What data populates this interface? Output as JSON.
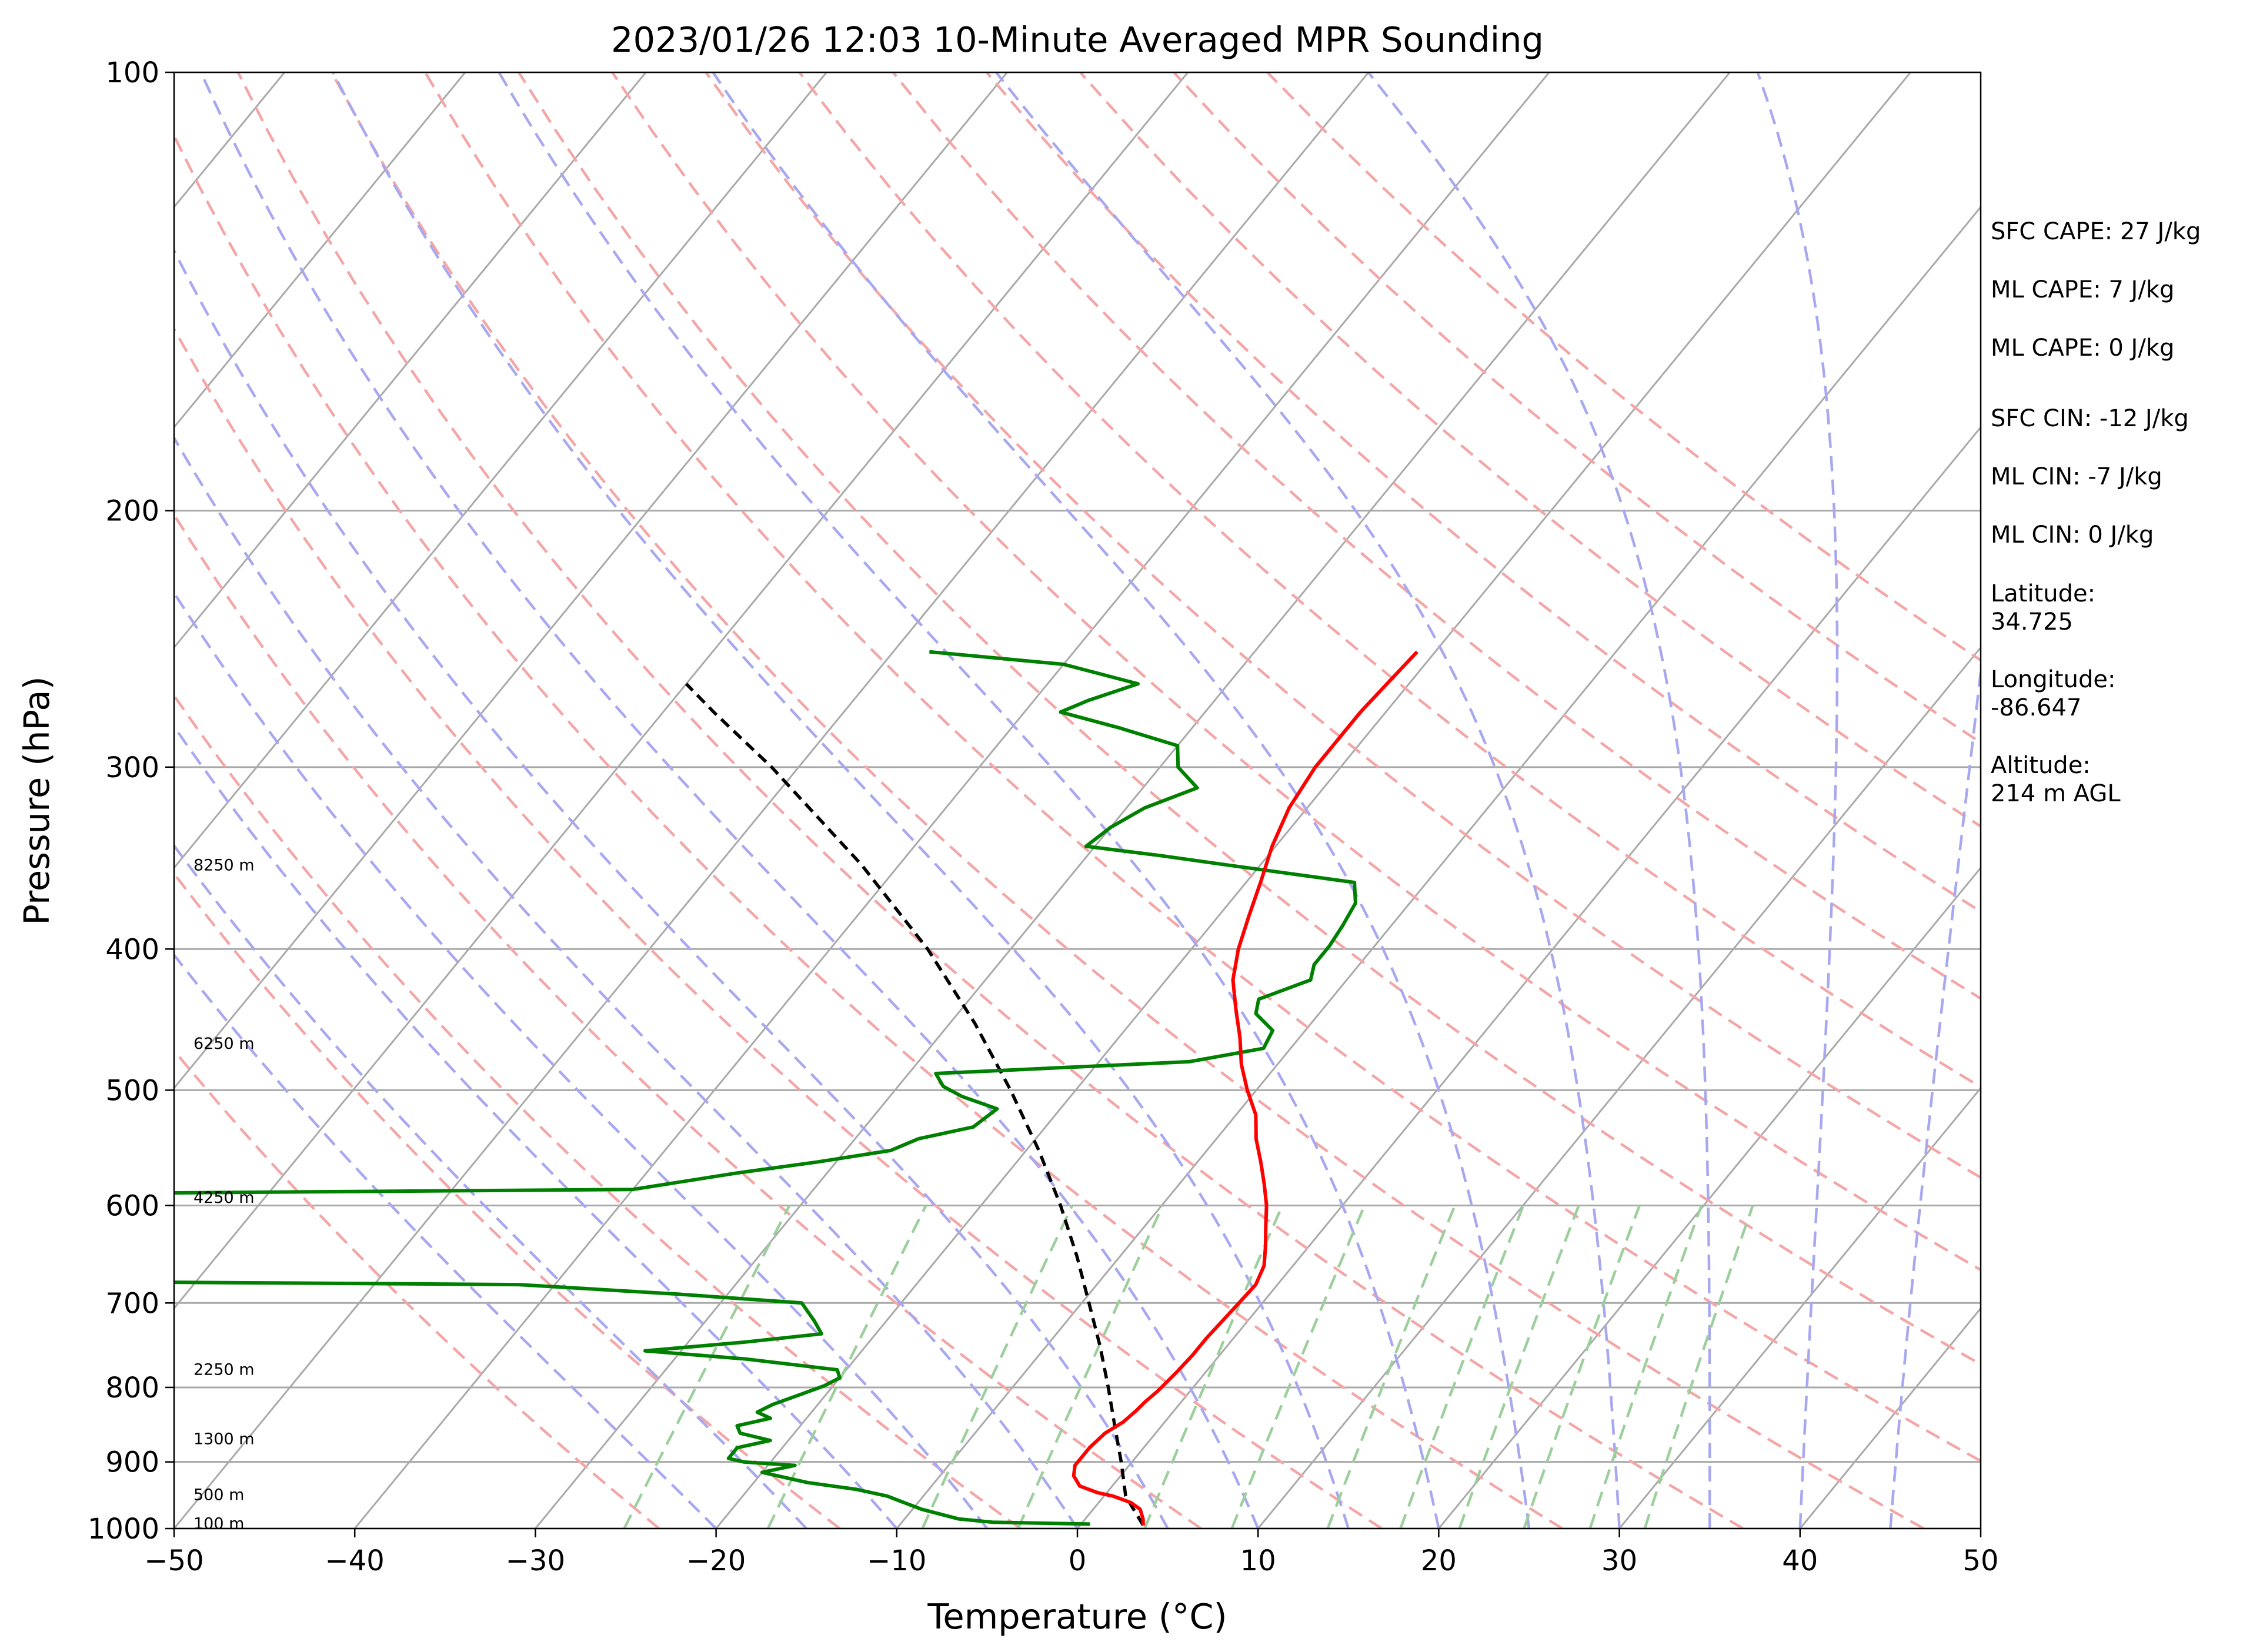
{
  "chart_data": {
    "type": "skew-t log-p sounding",
    "title": "2023/01/26 12:03 10-Minute Averaged MPR Sounding",
    "xlabel": "Temperature (°C)",
    "ylabel": "Pressure (hPa)",
    "xlim": [
      -50,
      50
    ],
    "ylim": [
      1000,
      100
    ],
    "x_ticks": [
      -50,
      -40,
      -30,
      -20,
      -10,
      0,
      10,
      20,
      30,
      40,
      50
    ],
    "x_tick_labels": [
      "−50",
      "−40",
      "−30",
      "−20",
      "−10",
      "0",
      "10",
      "20",
      "30",
      "40",
      "50"
    ],
    "y_ticks": [
      1000,
      900,
      800,
      700,
      600,
      500,
      400,
      300,
      200,
      100
    ],
    "y_tick_labels": [
      "1000",
      "900",
      "800",
      "700",
      "600",
      "500",
      "400",
      "300",
      "200",
      "100"
    ],
    "y_scale": "log",
    "grid": true,
    "skewed_isotherms": true,
    "colors": {
      "temperature": "#ff0000",
      "dewpoint": "#008000",
      "parcel": "#000000",
      "dry_adiabat": "#f4a6a6",
      "moist_adiabat": "#a8a8f0",
      "mixing_ratio": "#9ccf9c",
      "grid": "#a9a9a9"
    },
    "series": [
      {
        "role": "temperature",
        "points": [
          [
            995,
            3.5
          ],
          [
            985,
            3.2
          ],
          [
            970,
            2.6
          ],
          [
            960,
            1.8
          ],
          [
            950,
            0.5
          ],
          [
            945,
            -0.5
          ],
          [
            935,
            -1.8
          ],
          [
            920,
            -2.6
          ],
          [
            905,
            -3.0
          ],
          [
            880,
            -3.0
          ],
          [
            860,
            -2.8
          ],
          [
            845,
            -2.3
          ],
          [
            830,
            -2.1
          ],
          [
            818,
            -2.0
          ],
          [
            805,
            -1.8
          ],
          [
            780,
            -1.6
          ],
          [
            760,
            -1.5
          ],
          [
            740,
            -1.5
          ],
          [
            720,
            -1.4
          ],
          [
            700,
            -1.3
          ],
          [
            680,
            -1.2
          ],
          [
            660,
            -1.6
          ],
          [
            640,
            -2.4
          ],
          [
            620,
            -3.3
          ],
          [
            600,
            -4.2
          ],
          [
            580,
            -5.3
          ],
          [
            560,
            -6.5
          ],
          [
            540,
            -7.8
          ],
          [
            520,
            -8.9
          ],
          [
            500,
            -10.5
          ],
          [
            480,
            -12.0
          ],
          [
            460,
            -13.3
          ],
          [
            440,
            -14.8
          ],
          [
            420,
            -16.3
          ],
          [
            400,
            -17.4
          ],
          [
            380,
            -18.3
          ],
          [
            360,
            -19.2
          ],
          [
            340,
            -20.2
          ],
          [
            320,
            -21.0
          ],
          [
            300,
            -21.4
          ],
          [
            290,
            -21.4
          ],
          [
            275,
            -21.4
          ],
          [
            262,
            -21.2
          ],
          [
            250,
            -21.0
          ]
        ]
      },
      {
        "role": "dewpoint",
        "points": [
          [
            993,
            0.5
          ],
          [
            990,
            -5.0
          ],
          [
            985,
            -7.0
          ],
          [
            970,
            -9.5
          ],
          [
            962,
            -10.5
          ],
          [
            950,
            -12.0
          ],
          [
            940,
            -14.0
          ],
          [
            930,
            -17.0
          ],
          [
            920,
            -19.0
          ],
          [
            915,
            -20.0
          ],
          [
            905,
            -18.5
          ],
          [
            900,
            -21.5
          ],
          [
            895,
            -22.5
          ],
          [
            880,
            -22.5
          ],
          [
            870,
            -21.0
          ],
          [
            860,
            -23.0
          ],
          [
            850,
            -23.5
          ],
          [
            840,
            -22.0
          ],
          [
            832,
            -23.0
          ],
          [
            822,
            -22.5
          ],
          [
            810,
            -21.5
          ],
          [
            798,
            -20.5
          ],
          [
            788,
            -20.0
          ],
          [
            778,
            -20.5
          ],
          [
            765,
            -26.0
          ],
          [
            755,
            -32.0
          ],
          [
            745,
            -27.0
          ],
          [
            735,
            -23.0
          ],
          [
            720,
            -24.0
          ],
          [
            700,
            -25.5
          ],
          [
            690,
            -33.0
          ],
          [
            680,
            -42.0
          ],
          [
            675,
            -80.0
          ],
          [
            590,
            -80.0
          ],
          [
            585,
            -40.0
          ],
          [
            570,
            -35.0
          ],
          [
            560,
            -31.0
          ],
          [
            550,
            -27.5
          ],
          [
            540,
            -26.5
          ],
          [
            530,
            -24.0
          ],
          [
            515,
            -23.5
          ],
          [
            505,
            -26.0
          ],
          [
            497,
            -27.5
          ],
          [
            487,
            -28.5
          ],
          [
            478,
            -15.0
          ],
          [
            468,
            -11.5
          ],
          [
            455,
            -11.8
          ],
          [
            443,
            -13.5
          ],
          [
            433,
            -14.0
          ],
          [
            420,
            -12.0
          ],
          [
            410,
            -12.5
          ],
          [
            398,
            -12.5
          ],
          [
            385,
            -12.7
          ],
          [
            372,
            -13.0
          ],
          [
            360,
            -14.0
          ],
          [
            350,
            -22.0
          ],
          [
            345,
            -26.0
          ],
          [
            340,
            -30.5
          ],
          [
            330,
            -30.0
          ],
          [
            320,
            -29.0
          ],
          [
            310,
            -27.0
          ],
          [
            300,
            -29.0
          ],
          [
            290,
            -30.0
          ],
          [
            282,
            -34.0
          ],
          [
            275,
            -38.0
          ],
          [
            270,
            -37.0
          ],
          [
            263,
            -35.0
          ],
          [
            255,
            -40.0
          ],
          [
            250,
            -48.0
          ]
        ]
      },
      {
        "role": "parcel",
        "points": [
          [
            995,
            3.5
          ],
          [
            950,
            1.2
          ],
          [
            900,
            -0.6
          ],
          [
            850,
            -2.6
          ],
          [
            800,
            -4.7
          ],
          [
            750,
            -7.0
          ],
          [
            700,
            -9.6
          ],
          [
            650,
            -12.4
          ],
          [
            600,
            -15.6
          ],
          [
            550,
            -19.3
          ],
          [
            500,
            -23.6
          ],
          [
            450,
            -28.6
          ],
          [
            400,
            -34.6
          ],
          [
            350,
            -42.1
          ],
          [
            300,
            -51.5
          ],
          [
            275,
            -57.2
          ],
          [
            263,
            -60.0
          ]
        ]
      }
    ],
    "height_labels": [
      {
        "text": "100 m",
        "p": 991
      },
      {
        "text": "500 m",
        "p": 947
      },
      {
        "text": "1300 m",
        "p": 867
      },
      {
        "text": "2250 m",
        "p": 777
      },
      {
        "text": "4250 m",
        "p": 592
      },
      {
        "text": "6250 m",
        "p": 464
      },
      {
        "text": "8250 m",
        "p": 350
      }
    ],
    "dry_adiabats_K": [
      250,
      260,
      270,
      280,
      290,
      300,
      310,
      320,
      330,
      340,
      350,
      360,
      370,
      380,
      390,
      400,
      410,
      420
    ],
    "moist_adiabats_surface_C": [
      -20,
      -15,
      -10,
      -5,
      0,
      5,
      10,
      15,
      20,
      25,
      30,
      35,
      40,
      45
    ],
    "mixing_ratio_lines_gkg": [
      0.5,
      1,
      2,
      3,
      5,
      7,
      10,
      13,
      16,
      20,
      25,
      30
    ]
  },
  "stats_panel": {
    "sfc_cape": "SFC CAPE: 27 J/kg",
    "ml_cape_1": "ML CAPE: 7 J/kg",
    "ml_cape_2": "ML CAPE: 0 J/kg",
    "sfc_cin": "SFC CIN: -12 J/kg",
    "ml_cin_1": "ML CIN: -7 J/kg",
    "ml_cin_2": "ML CIN: 0 J/kg",
    "latitude_label": "Latitude:",
    "latitude_value": "34.725",
    "longitude_label": "Longitude:",
    "longitude_value": "-86.647",
    "altitude_label": "Altitude:",
    "altitude_value": "214 m AGL"
  }
}
